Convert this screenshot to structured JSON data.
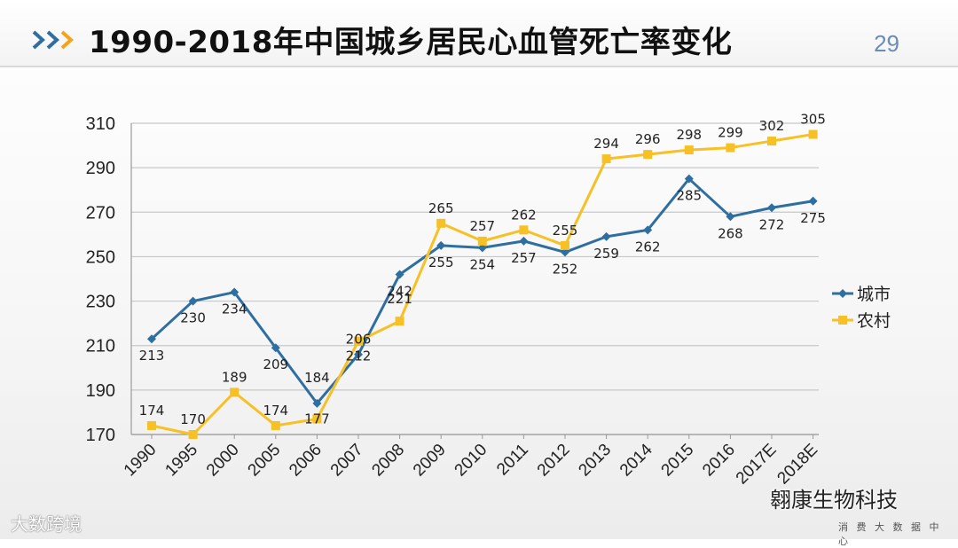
{
  "header": {
    "title": "1990-2018年中国城乡居民心血管死亡率变化",
    "page_number": "29"
  },
  "watermarks": {
    "left": "大数跨境",
    "right": "翱康生物科技",
    "sub": "消 费 大 数 据 中 心"
  },
  "colors": {
    "urban": "#2e6ea0",
    "rural": "#f7c025",
    "grid": "#c8c8c8",
    "chevron": "#2e6ea0"
  },
  "chart_data": {
    "type": "line",
    "categories": [
      "1990",
      "1995",
      "2000",
      "2005",
      "2006",
      "2007",
      "2008",
      "2009",
      "2010",
      "2011",
      "2012",
      "2013",
      "2014",
      "2015",
      "2016",
      "2017E",
      "2018E"
    ],
    "series": [
      {
        "name": "城市",
        "values": [
          213,
          230,
          234,
          209,
          184,
          206,
          242,
          255,
          254,
          257,
          252,
          259,
          262,
          285,
          268,
          272,
          275
        ],
        "marker": "diamond"
      },
      {
        "name": "农村",
        "values": [
          174,
          170,
          189,
          174,
          177,
          212,
          221,
          265,
          257,
          262,
          255,
          294,
          296,
          298,
          299,
          302,
          305
        ],
        "marker": "square"
      }
    ],
    "y_ticks": [
      170,
      190,
      210,
      230,
      250,
      270,
      290,
      310
    ],
    "ylim": [
      170,
      310
    ],
    "grid": true,
    "legend_position": "right"
  }
}
